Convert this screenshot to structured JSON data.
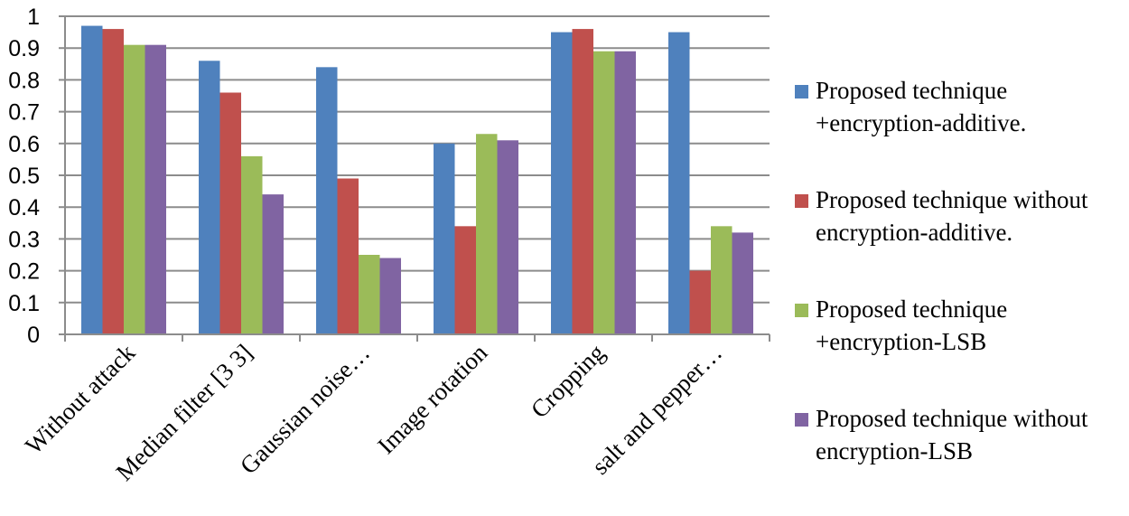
{
  "chart_data": {
    "type": "bar",
    "title": "",
    "xlabel": "",
    "ylabel": "",
    "ylim": [
      0,
      1
    ],
    "yticks": [
      "0",
      "0.1",
      "0.2",
      "0.3",
      "0.4",
      "0.5",
      "0.6",
      "0.7",
      "0.8",
      "0.9",
      "1"
    ],
    "grid": true,
    "legend_position": "right",
    "categories": [
      "Without attack",
      "Median filter [3 3]",
      "Gaussian noise…",
      "Image rotation",
      "Cropping",
      "salt and pepper…"
    ],
    "series": [
      {
        "name": "Proposed technique\n+encryption-additive.",
        "color": "#4f81bd",
        "values": [
          0.97,
          0.86,
          0.84,
          0.6,
          0.95,
          0.95
        ]
      },
      {
        "name": "Proposed technique without\nencryption-additive.",
        "color": "#c0504d",
        "values": [
          0.96,
          0.76,
          0.49,
          0.34,
          0.96,
          0.2
        ]
      },
      {
        "name": "Proposed technique\n+encryption-LSB",
        "color": "#9bbb59",
        "values": [
          0.91,
          0.56,
          0.25,
          0.63,
          0.89,
          0.34
        ]
      },
      {
        "name": "Proposed technique without\nencryption-LSB",
        "color": "#8064a2",
        "values": [
          0.91,
          0.44,
          0.24,
          0.61,
          0.89,
          0.32
        ]
      }
    ]
  }
}
